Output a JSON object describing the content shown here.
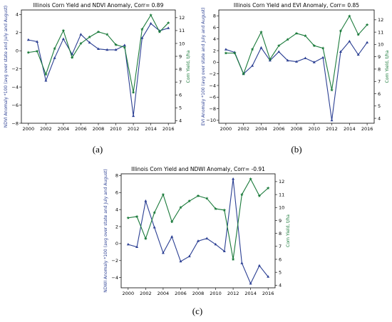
{
  "chart_data": [
    {
      "panel": "a",
      "type": "line",
      "caption": "(a)",
      "title": "Illinois Corn Yield and NDVI Anomaly, Corr= 0.89",
      "ylabel_left": "NDVI Anomaly *100 (avg over state and July and August)",
      "ylabel_right": "Corn Yield, t/ha",
      "x": [
        2000,
        2001,
        2002,
        2003,
        2004,
        2005,
        2006,
        2007,
        2008,
        2009,
        2010,
        2011,
        2012,
        2013,
        2014,
        2015,
        2016
      ],
      "xticks": [
        2000,
        2002,
        2004,
        2006,
        2008,
        2010,
        2012,
        2014,
        2016
      ],
      "ylim_left": [
        -8,
        4.5
      ],
      "yticks_left": [
        -8,
        -6,
        -4,
        -2,
        0,
        2,
        4
      ],
      "ylim_right": [
        3.8,
        12.6
      ],
      "yticks_right": [
        4,
        5,
        6,
        7,
        8,
        9,
        10,
        11,
        12
      ],
      "series": [
        {
          "axis": "left",
          "color": "#2b3f93",
          "marker": "triangle",
          "values": [
            1.2,
            1.0,
            -3.3,
            -0.8,
            1.3,
            -0.4,
            1.8,
            0.9,
            0.2,
            0.1,
            0.1,
            0.6,
            -7.2,
            1.4,
            3.0,
            2.2,
            2.5
          ]
        },
        {
          "axis": "right",
          "color": "#1a7a3a",
          "marker": "star",
          "values": [
            9.3,
            9.4,
            7.6,
            9.6,
            11.0,
            8.9,
            10.0,
            10.5,
            10.9,
            10.7,
            9.9,
            9.7,
            6.2,
            11.1,
            12.2,
            10.9,
            11.6
          ]
        }
      ]
    },
    {
      "panel": "b",
      "type": "line",
      "caption": "(b)",
      "title": "Illinois Corn Yield and EVI Anomaly, Corr= 0.85",
      "ylabel_left": "EVI Anomaly *100 (avg over state and July and August)",
      "ylabel_right": "Corn Yield, t/ha",
      "x": [
        2000,
        2001,
        2002,
        2003,
        2004,
        2005,
        2006,
        2007,
        2008,
        2009,
        2010,
        2011,
        2012,
        2013,
        2014,
        2015,
        2016
      ],
      "xticks": [
        2000,
        2002,
        2004,
        2006,
        2008,
        2010,
        2012,
        2014,
        2016
      ],
      "ylim_left": [
        -10.5,
        9
      ],
      "yticks_left": [
        -10,
        -8,
        -6,
        -4,
        -2,
        0,
        2,
        4,
        6,
        8
      ],
      "ylim_right": [
        3.6,
        12.8
      ],
      "yticks_right": [
        4,
        5,
        6,
        7,
        8,
        9,
        10,
        11,
        12
      ],
      "series": [
        {
          "axis": "left",
          "color": "#2b3f93",
          "marker": "triangle",
          "values": [
            2.2,
            1.7,
            -2.0,
            -0.6,
            2.5,
            0.3,
            1.8,
            0.3,
            0.1,
            0.7,
            0.0,
            0.8,
            -10.0,
            1.8,
            3.6,
            1.3,
            3.4
          ]
        },
        {
          "axis": "right",
          "color": "#1a7a3a",
          "marker": "star",
          "values": [
            9.3,
            9.3,
            7.6,
            9.6,
            11.0,
            8.8,
            9.9,
            10.4,
            10.9,
            10.7,
            9.9,
            9.7,
            6.3,
            11.1,
            12.3,
            10.8,
            11.6
          ]
        }
      ]
    },
    {
      "panel": "c",
      "type": "line",
      "caption": "(c)",
      "title": "Illinois Corn Yield and NDWI Anomaly, Corr= -0.91",
      "ylabel_left": "NDWI Anomaly *100 (avg over state and July and August)",
      "ylabel_right": "Corn Yield, t/ha",
      "x": [
        2000,
        2001,
        2002,
        2003,
        2004,
        2005,
        2006,
        2007,
        2008,
        2009,
        2010,
        2011,
        2012,
        2013,
        2014,
        2015,
        2016
      ],
      "xticks": [
        2000,
        2002,
        2004,
        2006,
        2008,
        2010,
        2012,
        2014,
        2016
      ],
      "ylim_left": [
        -5.2,
        8.2
      ],
      "yticks_left": [
        -4,
        -2,
        0,
        2,
        4,
        6,
        8
      ],
      "ylim_right": [
        3.8,
        12.6
      ],
      "yticks_right": [
        4,
        5,
        6,
        7,
        8,
        9,
        10,
        11,
        12
      ],
      "series": [
        {
          "axis": "left",
          "color": "#2b3f93",
          "marker": "triangle",
          "values": [
            -0.1,
            -0.4,
            5.0,
            1.9,
            -1.1,
            0.8,
            -2.1,
            -1.5,
            0.3,
            0.6,
            -0.1,
            -0.9,
            7.6,
            -2.3,
            -4.7,
            -2.6,
            -3.9
          ]
        },
        {
          "axis": "right",
          "color": "#1a7a3a",
          "marker": "star",
          "values": [
            9.2,
            9.3,
            7.6,
            9.6,
            11.0,
            8.9,
            10.0,
            10.5,
            10.9,
            10.7,
            9.9,
            9.8,
            6.0,
            11.0,
            12.2,
            10.9,
            11.5
          ]
        }
      ]
    }
  ]
}
